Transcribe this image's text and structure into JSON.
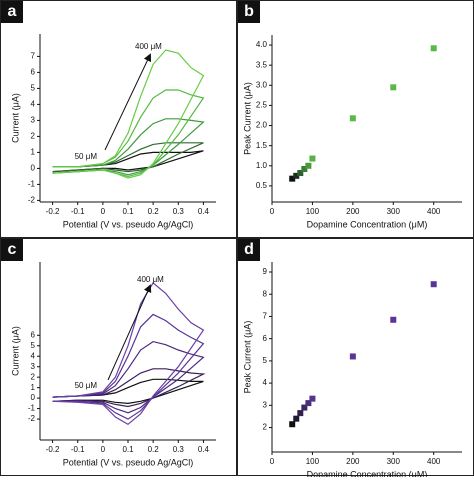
{
  "chart_data": [
    {
      "type": "line",
      "panel_label": "a",
      "x_label": "Potential (V vs. pseudo Ag/AgCl)",
      "y_label": "Current (μA)",
      "annotations": [
        "400 μM",
        "50 μM"
      ],
      "x": [
        -0.2,
        -0.1,
        0,
        0.05,
        0.1,
        0.15,
        0.2,
        0.25,
        0.3,
        0.35,
        0.4,
        0.3,
        0.2,
        0.15,
        0.1,
        0.05,
        0,
        -0.1,
        -0.2
      ],
      "series": [
        {
          "color": "#111111",
          "values": [
            0.1,
            0.1,
            0.2,
            0.3,
            0.6,
            0.9,
            1.0,
            1.0,
            1.0,
            1.0,
            1.1,
            0.6,
            0.1,
            0,
            -0.1,
            0,
            0,
            -0.1,
            -0.2
          ]
        },
        {
          "color": "#2d6b2d",
          "values": [
            0.1,
            0.1,
            0.2,
            0.4,
            0.8,
            1.2,
            1.5,
            1.6,
            1.6,
            1.6,
            1.6,
            0.9,
            0.1,
            -0.1,
            -0.2,
            -0.1,
            0,
            -0.1,
            -0.2
          ]
        },
        {
          "color": "#3f9a3f",
          "values": [
            0.1,
            0.1,
            0.2,
            0.5,
            1.2,
            2.1,
            2.8,
            3.1,
            3.1,
            3.0,
            2.9,
            1.5,
            0.2,
            -0.2,
            -0.4,
            -0.2,
            -0.1,
            -0.2,
            -0.3
          ]
        },
        {
          "color": "#55b83f",
          "values": [
            0.1,
            0.1,
            0.3,
            0.7,
            1.7,
            3.2,
            4.4,
            4.9,
            4.9,
            4.6,
            4.4,
            2.1,
            0.2,
            -0.3,
            -0.5,
            -0.3,
            -0.1,
            -0.2,
            -0.3
          ]
        },
        {
          "color": "#66cc44",
          "values": [
            0.1,
            0.1,
            0.3,
            0.8,
            2.2,
            4.5,
            6.5,
            7.4,
            7.2,
            6.3,
            5.8,
            2.8,
            0.3,
            -0.4,
            -0.6,
            -0.3,
            -0.1,
            -0.2,
            -0.3
          ]
        }
      ],
      "xlim": [
        -0.25,
        0.45
      ],
      "xticks": [
        -0.2,
        -0.1,
        0,
        0.1,
        0.2,
        0.3,
        0.4
      ],
      "ylim": [
        -2.1,
        8.4
      ],
      "yticks": [
        -2,
        -1,
        0,
        1,
        2,
        3,
        4,
        5,
        6,
        7
      ]
    },
    {
      "type": "scatter",
      "panel_label": "b",
      "x_label": "Dopamine Concentration (μM)",
      "y_label": "Peak Current (μA)",
      "x": [
        50,
        60,
        70,
        80,
        90,
        100,
        200,
        300,
        400
      ],
      "values": [
        0.68,
        0.75,
        0.82,
        0.92,
        1.0,
        1.18,
        2.18,
        2.95,
        3.92
      ],
      "colors": [
        "#111111",
        "#1e2e1e",
        "#2e5e2e",
        "#3a7a3a",
        "#4a9a3a",
        "#5ab04a",
        "#5ab84a",
        "#5ab84a",
        "#5ab84a"
      ],
      "xlim": [
        0,
        470
      ],
      "xticks": [
        0,
        100,
        200,
        300,
        400
      ],
      "ylim": [
        0.1,
        4.25
      ],
      "yticks": [
        0.5,
        {
          "value": 1,
          "label": "1.0"
        },
        1.5,
        {
          "value": 2,
          "label": "2.0"
        },
        2.5,
        {
          "value": 3,
          "label": "3.0"
        },
        3.5,
        {
          "value": 4,
          "label": "4.0"
        }
      ]
    },
    {
      "type": "line",
      "panel_label": "c",
      "x_label": "Potential (V vs. pseudo Ag/AgCl)",
      "y_label": "Current (μA)",
      "annotations": [
        "400 μM",
        "50 μM"
      ],
      "x": [
        -0.2,
        -0.1,
        0,
        0.05,
        0.1,
        0.15,
        0.2,
        0.25,
        0.3,
        0.35,
        0.4,
        0.3,
        0.2,
        0.15,
        0.1,
        0.05,
        0,
        -0.1,
        -0.2
      ],
      "series": [
        {
          "color": "#111111",
          "values": [
            0.1,
            0.2,
            0.3,
            0.5,
            1,
            1.5,
            1.8,
            1.8,
            1.7,
            1.6,
            1.6,
            0.8,
            0,
            -0.3,
            -0.5,
            -0.4,
            -0.2,
            -0.2,
            -0.3
          ]
        },
        {
          "color": "#3a1f5c",
          "values": [
            0.1,
            0.2,
            0.3,
            0.8,
            1.6,
            2.4,
            2.8,
            2.8,
            2.6,
            2.4,
            2.3,
            1.1,
            0,
            -0.5,
            -0.8,
            -0.6,
            -0.3,
            -0.2,
            -0.3
          ]
        },
        {
          "color": "#4b2a80",
          "values": [
            0.1,
            0.2,
            0.4,
            1.2,
            2.8,
            4.6,
            5.4,
            5.1,
            4.6,
            4.2,
            3.9,
            1.8,
            0.1,
            -0.9,
            -1.4,
            -1,
            -0.4,
            -0.3,
            -0.3
          ]
        },
        {
          "color": "#5a3497",
          "values": [
            0.1,
            0.2,
            0.5,
            1.6,
            4,
            6.8,
            8,
            7.4,
            6.5,
            5.8,
            5.2,
            2.4,
            0.1,
            -1.2,
            -2,
            -1.4,
            -0.5,
            -0.3,
            -0.3
          ]
        },
        {
          "color": "#6a3fa8",
          "values": [
            0.1,
            0.2,
            0.6,
            2,
            5,
            9,
            11,
            10,
            8.5,
            7.2,
            6.5,
            3,
            0.2,
            -1.5,
            -2.5,
            -1.8,
            -0.6,
            -0.4,
            -0.3
          ]
        }
      ],
      "xlim": [
        -0.25,
        0.45
      ],
      "xticks": [
        -0.2,
        -0.1,
        0,
        0.1,
        0.2,
        0.3,
        0.4
      ],
      "ylim": [
        -4,
        13
      ],
      "yticks": [
        -2,
        -1,
        0,
        1,
        2,
        3,
        4,
        5,
        6
      ]
    },
    {
      "type": "scatter",
      "panel_label": "d",
      "x_label": "Dopamine Concentration (μM)",
      "y_label": "Peak Current (μA)",
      "x": [
        50,
        60,
        70,
        80,
        90,
        100,
        200,
        300,
        400
      ],
      "values": [
        2.15,
        2.4,
        2.65,
        2.9,
        3.1,
        3.3,
        5.2,
        6.85,
        8.45
      ],
      "colors": [
        "#111111",
        "#221833",
        "#30204a",
        "#3c2860",
        "#4a3078",
        "#553490",
        "#5a3497",
        "#5a3497",
        "#5a3497"
      ],
      "xlim": [
        0,
        470
      ],
      "xticks": [
        0,
        100,
        200,
        300,
        400
      ],
      "ylim": [
        0.9,
        9.45
      ],
      "yticks": [
        2,
        3,
        4,
        5,
        6,
        7,
        8,
        9
      ]
    }
  ]
}
